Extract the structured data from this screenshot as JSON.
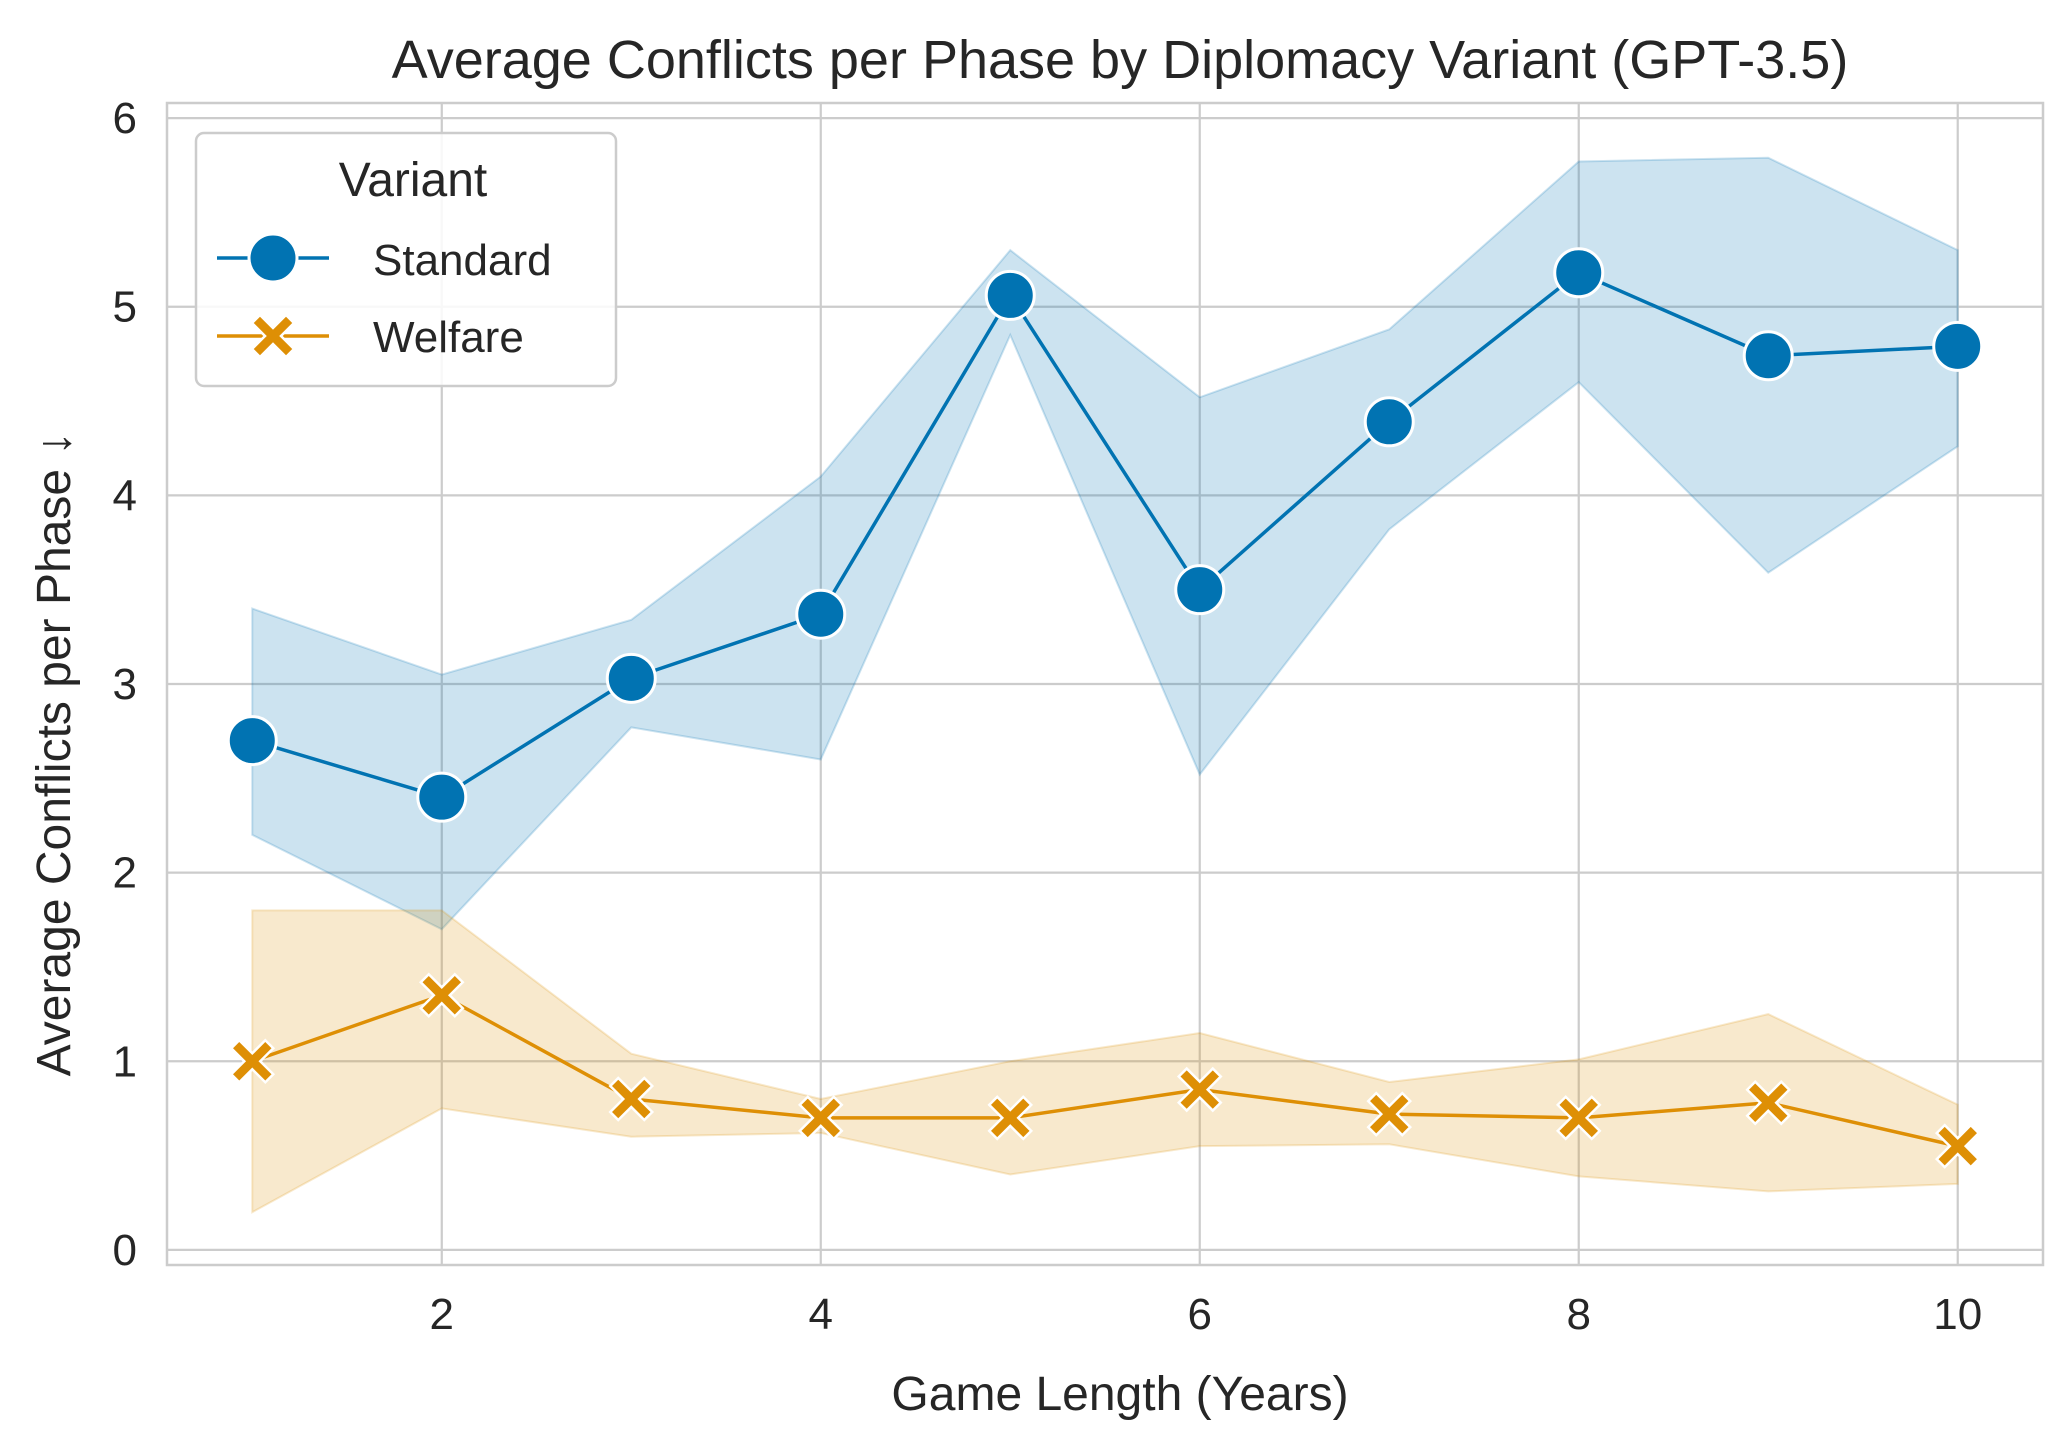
{
  "chart_data": {
    "type": "line",
    "title": "Average Conflicts per Phase by Diplomacy Variant (GPT-3.5)",
    "xlabel": "Game Length (Years)",
    "ylabel": "Average Conflicts per Phase ↓",
    "x": [
      1,
      2,
      3,
      4,
      5,
      6,
      7,
      8,
      9,
      10
    ],
    "xlim": [
      0.55,
      10.45
    ],
    "ylim": [
      -0.08,
      6.08
    ],
    "xticks": [
      2,
      4,
      6,
      8,
      10
    ],
    "yticks": [
      0,
      1,
      2,
      3,
      4,
      5,
      6
    ],
    "grid": true,
    "legend": {
      "title": "Variant",
      "position": "top-left"
    },
    "series": [
      {
        "name": "Standard",
        "marker": "circle",
        "color": "#0173b2",
        "values": [
          2.7,
          2.4,
          3.03,
          3.37,
          5.06,
          3.5,
          4.39,
          5.18,
          4.74,
          4.79
        ],
        "ci_lower": [
          2.2,
          1.7,
          2.77,
          2.6,
          4.85,
          2.52,
          3.82,
          4.6,
          3.59,
          4.26
        ],
        "ci_upper": [
          3.4,
          3.05,
          3.34,
          4.1,
          5.3,
          4.52,
          4.88,
          5.77,
          5.79,
          5.3
        ]
      },
      {
        "name": "Welfare",
        "marker": "x",
        "color": "#de8f05",
        "values": [
          1.0,
          1.35,
          0.8,
          0.7,
          0.7,
          0.85,
          0.72,
          0.7,
          0.78,
          0.55
        ],
        "ci_lower": [
          0.2,
          0.75,
          0.6,
          0.62,
          0.4,
          0.55,
          0.56,
          0.39,
          0.31,
          0.35
        ],
        "ci_upper": [
          1.8,
          1.8,
          1.04,
          0.8,
          1.0,
          1.15,
          0.89,
          1.01,
          1.25,
          0.77
        ]
      }
    ]
  }
}
